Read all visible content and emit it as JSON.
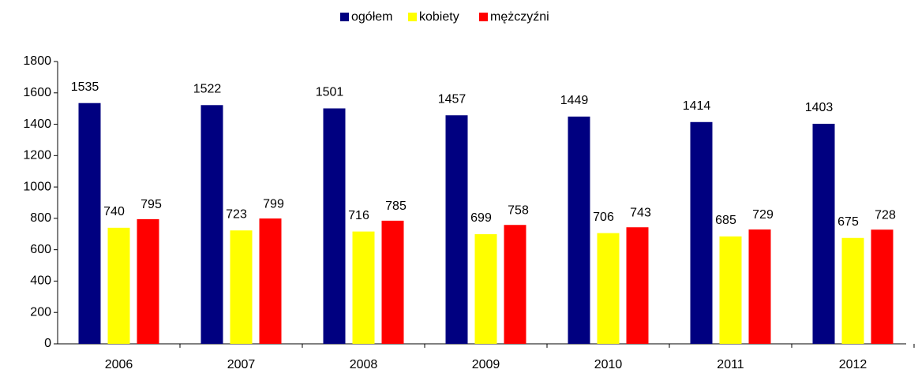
{
  "chart_data": {
    "type": "bar",
    "categories": [
      "2006",
      "2007",
      "2008",
      "2009",
      "2010",
      "2011",
      "2012"
    ],
    "series": [
      {
        "name": "ogółem",
        "color": "#000080",
        "values": [
          1535,
          1522,
          1501,
          1457,
          1449,
          1414,
          1403
        ]
      },
      {
        "name": "kobiety",
        "color": "#ffff00",
        "values": [
          740,
          723,
          716,
          699,
          706,
          685,
          675
        ]
      },
      {
        "name": "mężczyźni",
        "color": "#ff0000",
        "values": [
          795,
          799,
          785,
          758,
          743,
          729,
          728
        ]
      }
    ],
    "ylim": [
      0,
      1800
    ],
    "yticks": [
      0,
      200,
      400,
      600,
      800,
      1000,
      1200,
      1400,
      1600,
      1800
    ],
    "legend": "top",
    "grid": false
  }
}
